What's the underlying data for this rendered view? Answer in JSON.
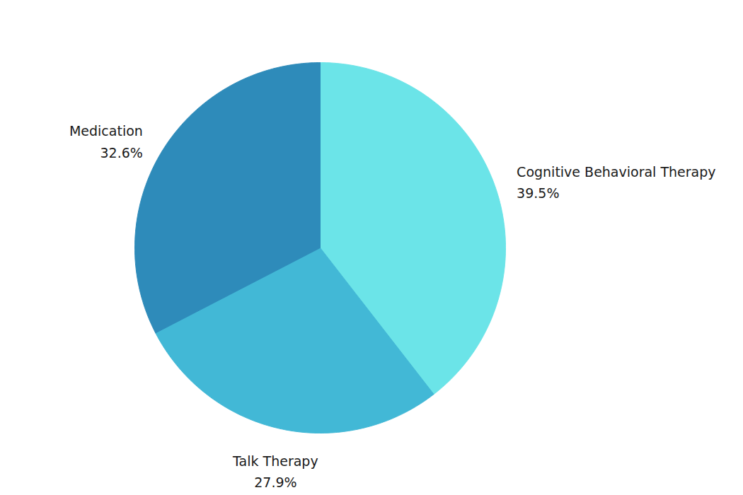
{
  "chart_data": {
    "type": "pie",
    "categories": [
      "Cognitive Behavioral Therapy",
      "Talk Therapy",
      "Medication"
    ],
    "values": [
      39.5,
      27.9,
      32.6
    ],
    "value_labels": [
      "39.5%",
      "27.9%",
      "32.6%"
    ],
    "colors": [
      "#6be4e8",
      "#42b8d6",
      "#2e8bba"
    ],
    "data_labels": true
  }
}
